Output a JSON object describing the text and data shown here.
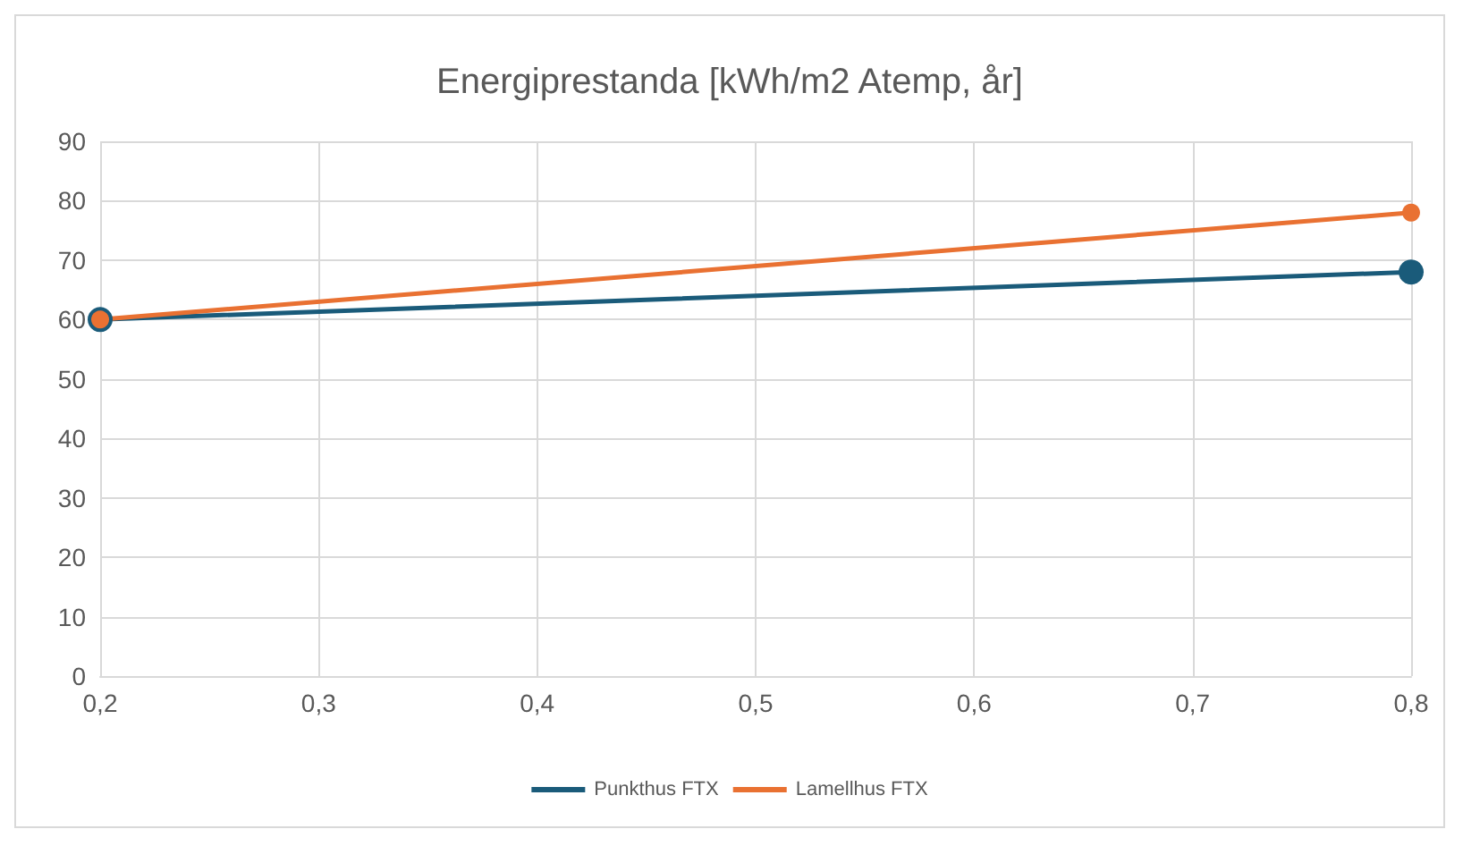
{
  "chart_data": {
    "type": "line",
    "title": "Energiprestanda [kWh/m2 Atemp, år]",
    "x": [
      0.2,
      0.8
    ],
    "series": [
      {
        "name": "Punkthus FTX",
        "color": "#1a5b7a",
        "values": [
          60,
          68
        ]
      },
      {
        "name": "Lamellhus FTX",
        "color": "#e97132",
        "values": [
          60,
          78
        ]
      }
    ],
    "xlim": [
      0.2,
      0.8
    ],
    "xticks": [
      {
        "value": 0.2,
        "label": "0,2"
      },
      {
        "value": 0.3,
        "label": "0,3"
      },
      {
        "value": 0.4,
        "label": "0,4"
      },
      {
        "value": 0.5,
        "label": "0,5"
      },
      {
        "value": 0.6,
        "label": "0,6"
      },
      {
        "value": 0.7,
        "label": "0,7"
      },
      {
        "value": 0.8,
        "label": "0,8"
      }
    ],
    "ylim": [
      0,
      90
    ],
    "yticks": [
      0,
      10,
      20,
      30,
      40,
      50,
      60,
      70,
      80,
      90
    ],
    "grid": true,
    "legend": "bottom",
    "marker": "circle",
    "line_style": "solid"
  }
}
